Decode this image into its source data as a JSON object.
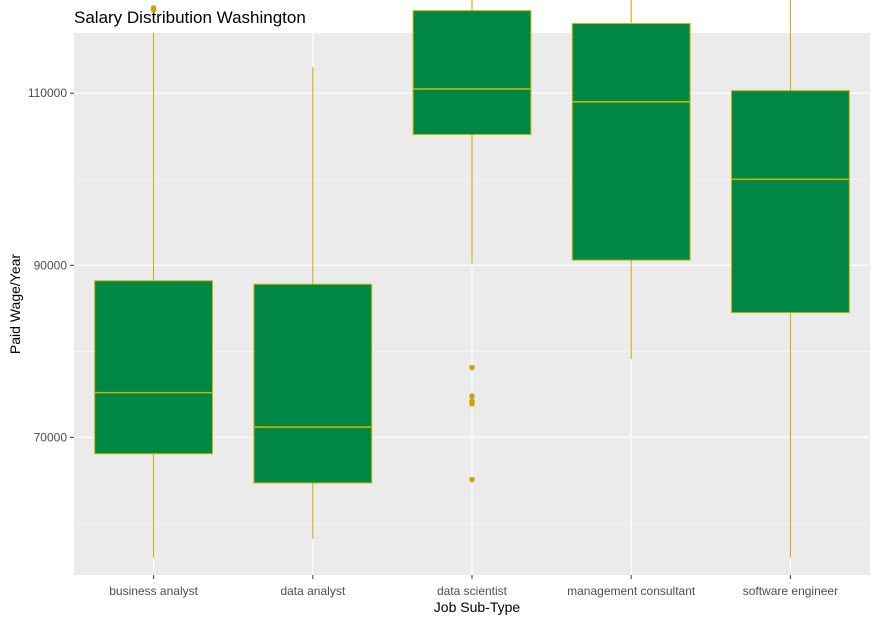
{
  "chart_data": {
    "type": "boxplot",
    "title": "Salary Distribution Washington",
    "xlabel": "Job Sub-Type",
    "ylabel": "Paid Wage/Year",
    "ylim": [
      54000,
      117000
    ],
    "yticks": [
      70000,
      90000,
      110000
    ],
    "ytick_labels": [
      "70000",
      "90000",
      "110000"
    ],
    "grid": true,
    "colors": {
      "box_fill": "#008744",
      "box_line": "#c8b400",
      "whisker": "#c8a400",
      "outlier": "#c8a400",
      "panel_bg": "#ebebeb",
      "grid_major": "#ffffff"
    },
    "categories": [
      "business analyst",
      "data analyst",
      "data scientist",
      "management consultant",
      "software engineer"
    ],
    "boxes": [
      {
        "min": 56000,
        "q1": 68100,
        "median": 75200,
        "q3": 88200,
        "max": 117000,
        "outliers": [
          119700,
          119900
        ]
      },
      {
        "min": 58200,
        "q1": 64700,
        "median": 71200,
        "q3": 87800,
        "max": 113000,
        "outliers": []
      },
      {
        "min": 90200,
        "q1": 105200,
        "median": 110500,
        "q3": 119600,
        "max": 124800,
        "outliers": [
          78100,
          74800,
          74200,
          73900,
          65100
        ]
      },
      {
        "min": 79100,
        "q1": 90600,
        "median": 109000,
        "q3": 118100,
        "max": 124700,
        "outliers": []
      },
      {
        "min": 56000,
        "q1": 84500,
        "median": 100000,
        "q3": 110300,
        "max": 125000,
        "outliers": []
      }
    ]
  }
}
